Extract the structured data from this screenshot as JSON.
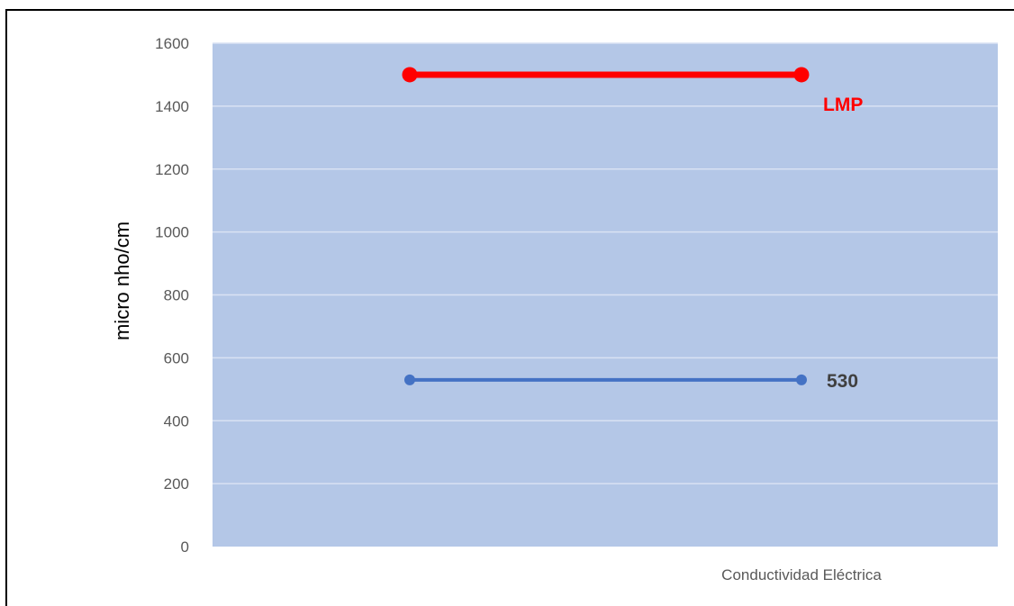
{
  "chart_data": {
    "type": "line",
    "ylabel": "micro nho/cm",
    "xlabel": "",
    "category_label": "Conductividad Eléctrica",
    "ylim": [
      0,
      1600
    ],
    "y_ticks": [
      0,
      200,
      400,
      600,
      800,
      1000,
      1200,
      1400,
      1600
    ],
    "grid": true,
    "x": [
      1,
      2
    ],
    "series": [
      {
        "name": "LMP",
        "values": [
          1500,
          1500
        ],
        "color": "#ff0000"
      },
      {
        "name": "530",
        "values": [
          530,
          530
        ],
        "color": "#4472c4"
      }
    ],
    "background_color": "#b4c7e7",
    "gridline_color": "#d9e2f3"
  }
}
